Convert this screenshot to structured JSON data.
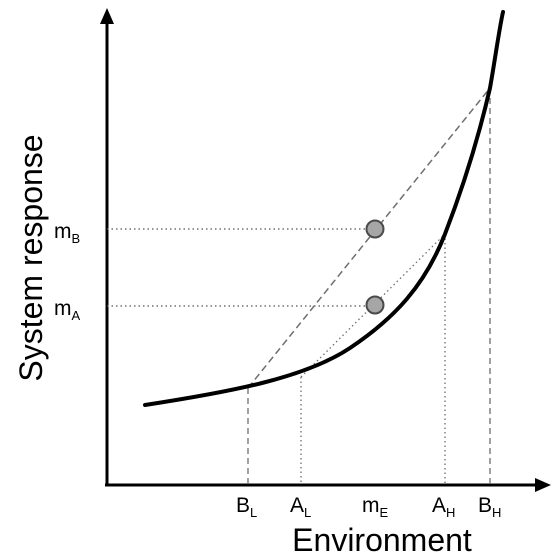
{
  "axes": {
    "x_label": "Environment",
    "y_label": "System response"
  },
  "x_ticks": [
    {
      "base": "B",
      "sub": "L"
    },
    {
      "base": "A",
      "sub": "L"
    },
    {
      "base": "m",
      "sub": "E"
    },
    {
      "base": "A",
      "sub": "H"
    },
    {
      "base": "B",
      "sub": "H"
    }
  ],
  "y_ticks": [
    {
      "base": "m",
      "sub": "B"
    },
    {
      "base": "m",
      "sub": "A"
    }
  ],
  "colors": {
    "curve": "#000000",
    "axis": "#000000",
    "guide": "#6e6e6e",
    "marker_fill": "#a6a6a6",
    "marker_stroke": "#4a4a4a"
  }
}
